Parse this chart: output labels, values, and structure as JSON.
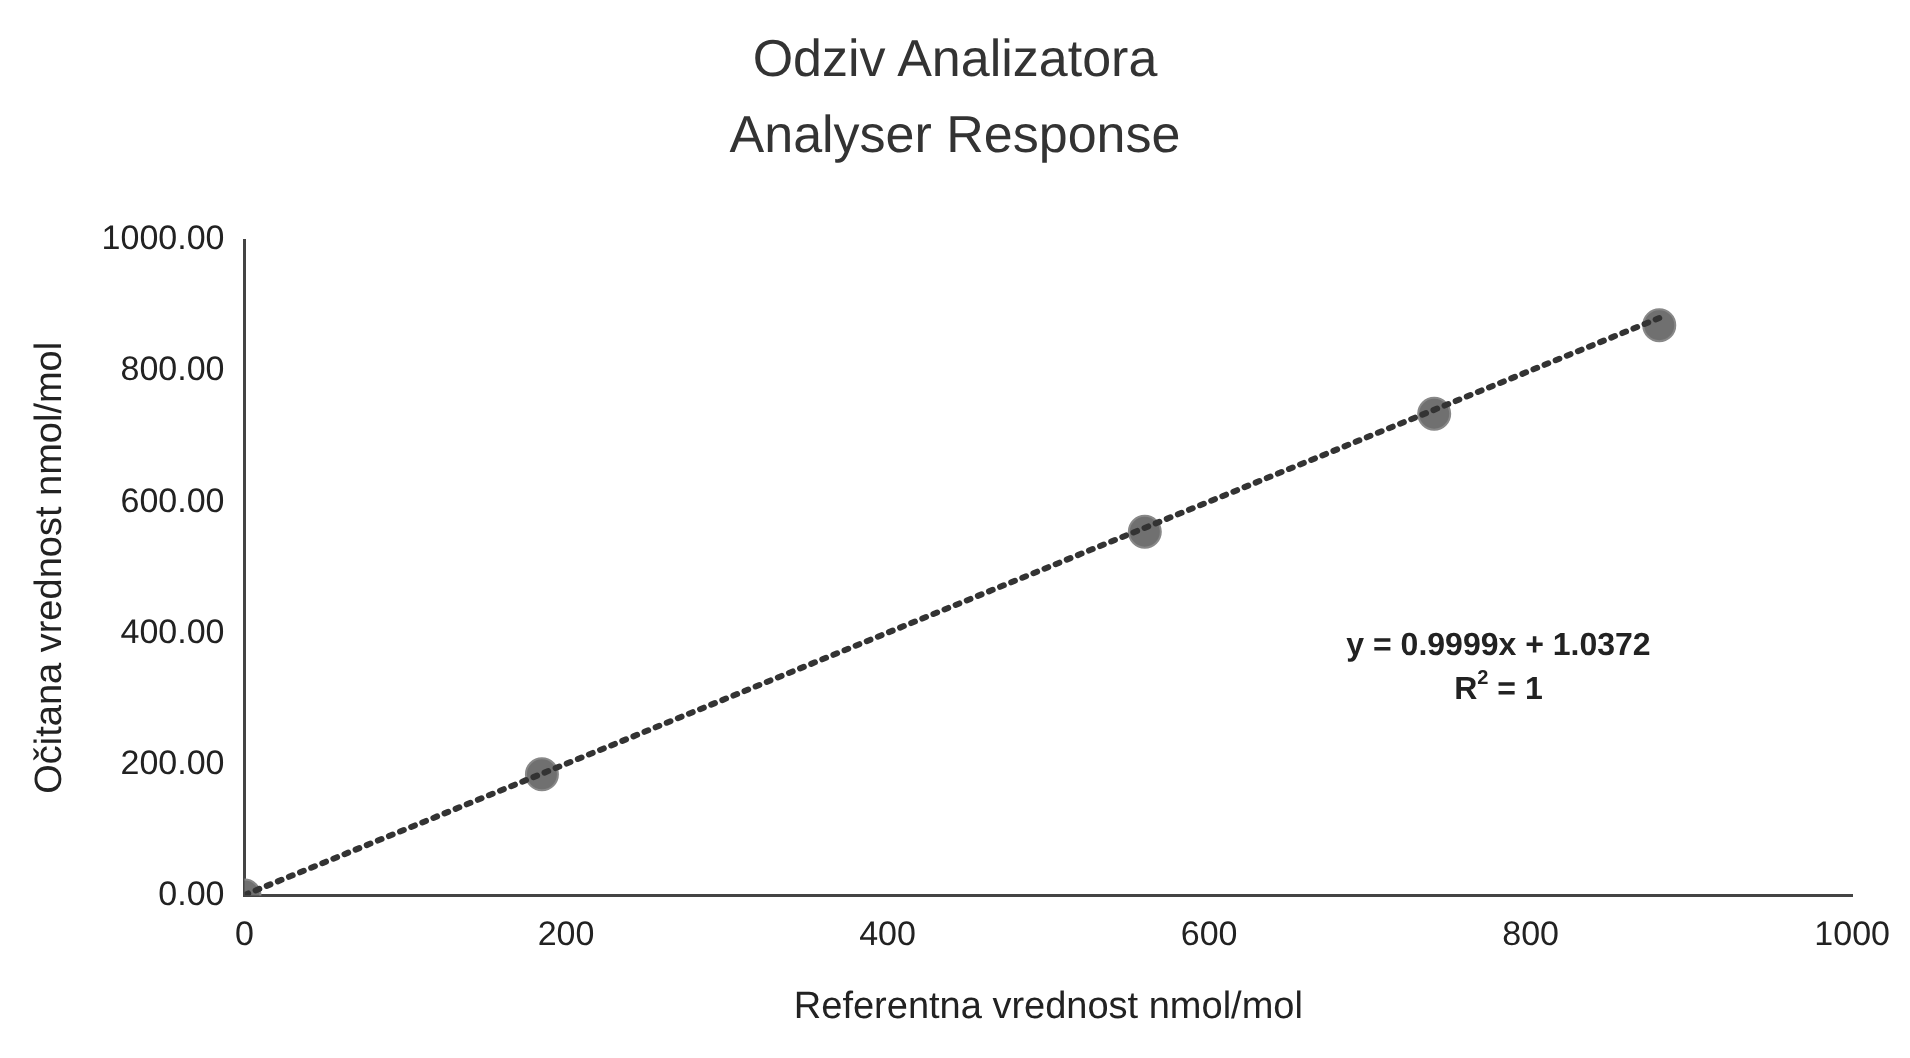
{
  "chart_data": {
    "type": "scatter",
    "title": "Odziv Analizatora\nAnalyser Response",
    "xlabel": "Referentna vrednost nmol/mol",
    "ylabel": "Očitana vrednost nmol/mol",
    "x": [
      0,
      185,
      560,
      740,
      880
    ],
    "series": [
      {
        "color": "#707070",
        "values": [
          0,
          185,
          555,
          735,
          870
        ],
        "marker": "circle"
      },
      {
        "type": "line",
        "color": "#333333",
        "x": [
          0,
          880
        ],
        "values": [
          1,
          881
        ],
        "line_style": "dotted",
        "marker": "none"
      }
    ],
    "xlim": [
      0,
      1000
    ],
    "xticks": [
      0,
      200,
      400,
      600,
      800,
      1000
    ],
    "ylim": [
      0,
      1000
    ],
    "yticks": [
      {
        "value": 0,
        "label": "0.00"
      },
      {
        "value": 200,
        "label": "200.00"
      },
      {
        "value": 400,
        "label": "400.00"
      },
      {
        "value": 600,
        "label": "600.00"
      },
      {
        "value": 800,
        "label": "800.00"
      },
      {
        "value": 1000,
        "label": "1000.00"
      }
    ],
    "annotations": [
      "y = 0.9999x + 1.0372",
      "R$^{2}$ = 1"
    ],
    "grid": false,
    "legend": false
  }
}
